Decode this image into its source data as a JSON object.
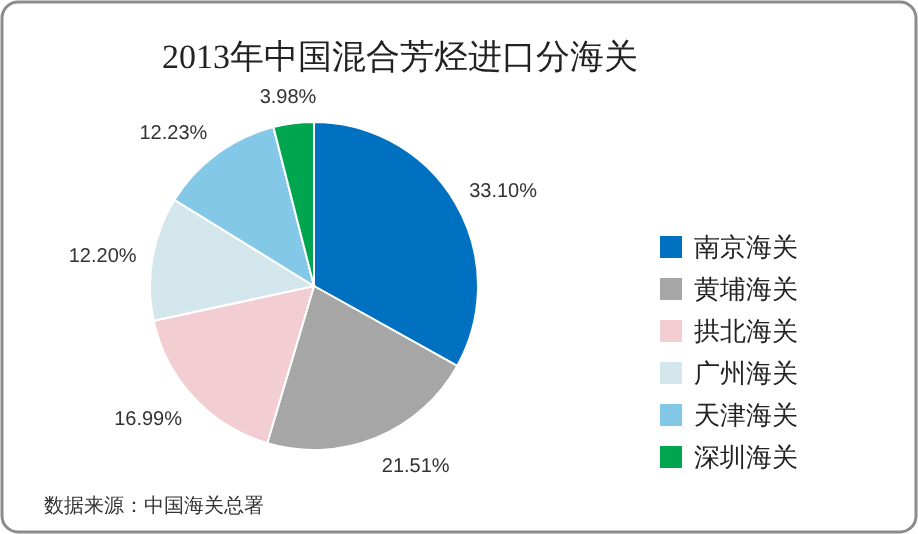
{
  "chart_data": {
    "type": "pie",
    "title": "2013年中国混合芳烃进口分海关",
    "categories": [
      "南京海关",
      "黄埔海关",
      "拱北海关",
      "广州海关",
      "天津海关",
      "深圳海关"
    ],
    "values": [
      33.1,
      21.51,
      16.99,
      12.2,
      12.23,
      3.98
    ],
    "value_labels": [
      "33.10%",
      "21.51%",
      "16.99%",
      "12.20%",
      "12.23%",
      "3.98%"
    ],
    "colors": [
      "#0070c0",
      "#a6a6a6",
      "#f2cdd2",
      "#d3e6ec",
      "#84c8e8",
      "#00a550"
    ],
    "legend": "right",
    "annotations": [
      "数据来源：中国海关总署"
    ]
  }
}
